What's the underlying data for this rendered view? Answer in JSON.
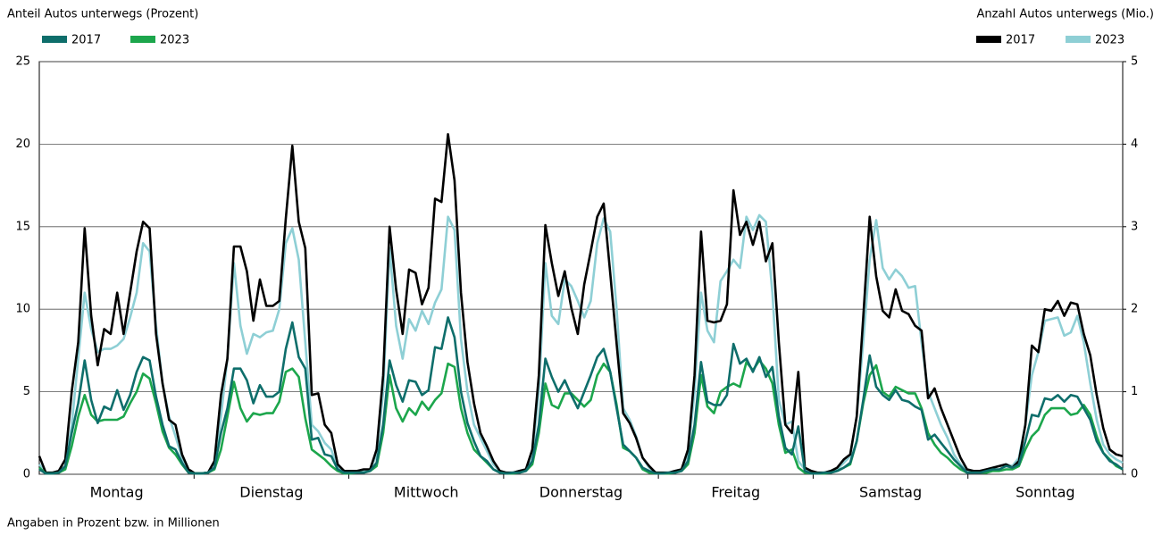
{
  "chart_data": {
    "type": "line",
    "ylabel": "Anteil Autos unterwegs (Prozent)",
    "y2label": "Anzahl Autos unterwegs (Mio.)",
    "note": "Angaben in Prozent bzw. in Millionen",
    "categories": [
      "Montag",
      "Dienstag",
      "Mittwoch",
      "Donnerstag",
      "Freitag",
      "Samstag",
      "Sonntag"
    ],
    "ylim": [
      0,
      25
    ],
    "yticks": [
      0,
      5,
      10,
      15,
      20,
      25
    ],
    "y2lim": [
      0,
      5
    ],
    "y2ticks": [
      0,
      1,
      2,
      3,
      4,
      5
    ],
    "grid": true,
    "series": [
      {
        "name": "2017",
        "color": "#0e6e6b",
        "axis": "y",
        "values": [
          [
            0.3,
            0.05,
            0.05,
            0.1,
            0.5,
            2.5,
            4.3,
            6.9,
            4.5,
            3.1,
            4.1,
            3.9,
            5.1,
            3.9,
            4.8,
            6.2,
            7.1,
            6.9,
            4.7,
            3,
            1.7,
            1.5,
            0.7,
            0.1
          ],
          [
            0.05,
            0.05,
            0.1,
            0.4,
            2.5,
            4,
            6.4,
            6.4,
            5.7,
            4.3,
            5.4,
            4.7,
            4.7,
            5,
            7.6,
            9.2,
            7.1,
            6.4,
            2.1,
            2.2,
            1.2,
            1.1,
            0.3,
            0.1
          ],
          [
            0.1,
            0.1,
            0.1,
            0.2,
            0.7,
            3,
            6.9,
            5.4,
            4.4,
            5.7,
            5.6,
            4.8,
            5.1,
            7.7,
            7.6,
            9.5,
            8.3,
            5,
            3.1,
            2,
            1.1,
            0.8,
            0.3,
            0.1
          ],
          [
            0.05,
            0.1,
            0.1,
            0.2,
            0.8,
            3,
            7,
            5.9,
            5,
            5.7,
            4.8,
            4,
            5,
            6,
            7.1,
            7.6,
            6.2,
            4,
            1.8,
            1.4,
            1,
            0.4,
            0.2,
            0.05
          ],
          [
            0.05,
            0.1,
            0.1,
            0.2,
            0.8,
            3,
            6.8,
            4.4,
            4.2,
            4.2,
            4.8,
            7.9,
            6.7,
            7,
            6.2,
            7.1,
            5.9,
            6.5,
            3.5,
            1.6,
            1.2,
            2.9,
            0.2,
            0.05
          ],
          [
            0.05,
            0.1,
            0.1,
            0.2,
            0.4,
            0.7,
            2,
            4.5,
            7.2,
            5.3,
            4.8,
            4.5,
            5.1,
            4.5,
            4.4,
            4.1,
            3.9,
            2.1,
            2.4,
            1.9,
            1.4,
            0.9,
            0.5,
            0.1
          ],
          [
            0.1,
            0.1,
            0.2,
            0.3,
            0.3,
            0.5,
            0.4,
            0.6,
            2,
            3.6,
            3.5,
            4.6,
            4.5,
            4.8,
            4.4,
            4.8,
            4.7,
            4,
            3.3,
            2,
            1.3,
            0.8,
            0.6,
            0.3
          ]
        ]
      },
      {
        "name": "2023",
        "color": "#1ca64c",
        "axis": "y",
        "values": [
          [
            0.4,
            0.05,
            0.05,
            0.1,
            0.3,
            1.7,
            3.5,
            4.8,
            3.6,
            3.2,
            3.3,
            3.3,
            3.3,
            3.5,
            4.3,
            5,
            6.1,
            5.8,
            4.3,
            2.6,
            1.6,
            1.2,
            0.6,
            0.1
          ],
          [
            0.05,
            0.05,
            0.1,
            0.3,
            1.5,
            3.5,
            5.6,
            4,
            3.2,
            3.7,
            3.6,
            3.7,
            3.7,
            4.4,
            6.2,
            6.4,
            5.9,
            3.4,
            1.5,
            1.2,
            0.9,
            0.5,
            0.2,
            0.05
          ],
          [
            0.05,
            0.1,
            0.1,
            0.2,
            0.5,
            2.5,
            6,
            4,
            3.2,
            4,
            3.6,
            4.4,
            3.9,
            4.5,
            4.9,
            6.7,
            6.5,
            4,
            2.5,
            1.5,
            1.1,
            0.7,
            0.3,
            0.1
          ],
          [
            0.05,
            0.05,
            0.1,
            0.2,
            0.6,
            2.5,
            5.5,
            4.2,
            4,
            4.9,
            4.9,
            4.5,
            4.1,
            4.5,
            6,
            6.7,
            6.2,
            4.2,
            1.6,
            1.4,
            1,
            0.3,
            0.1,
            0.05
          ],
          [
            0.05,
            0.05,
            0.1,
            0.2,
            0.6,
            2.5,
            6,
            4.1,
            3.7,
            5,
            5.3,
            5.5,
            5.3,
            6.8,
            6.3,
            6.9,
            6.4,
            5.5,
            3,
            1.3,
            1.5,
            0.4,
            0.1,
            0.05
          ],
          [
            0.05,
            0.05,
            0.1,
            0.2,
            0.4,
            0.6,
            2,
            4.3,
            6,
            6.6,
            5,
            4.7,
            5.3,
            5.1,
            4.9,
            4.9,
            4,
            2.5,
            1.8,
            1.3,
            1,
            0.6,
            0.3,
            0.1
          ],
          [
            0.1,
            0.1,
            0.1,
            0.2,
            0.2,
            0.3,
            0.3,
            0.5,
            1.5,
            2.3,
            2.7,
            3.6,
            4,
            4,
            4,
            3.6,
            3.7,
            4.2,
            3.6,
            2.3,
            1.3,
            0.9,
            0.5,
            0.3
          ]
        ]
      },
      {
        "name": "2017",
        "color": "#000000",
        "axis": "y2",
        "values": [
          [
            0.22,
            0.02,
            0.02,
            0.04,
            0.18,
            1.0,
            1.6,
            2.98,
            1.92,
            1.32,
            1.76,
            1.7,
            2.2,
            1.7,
            2.2,
            2.7,
            3.06,
            2.98,
            1.7,
            1.1,
            0.66,
            0.6,
            0.24,
            0.06
          ],
          [
            0.01,
            0.01,
            0.02,
            0.16,
            0.96,
            1.4,
            2.76,
            2.76,
            2.46,
            1.86,
            2.36,
            2.04,
            2.04,
            2.1,
            3.1,
            3.98,
            3.06,
            2.74,
            0.96,
            0.98,
            0.6,
            0.5,
            0.12,
            0.04
          ],
          [
            0.04,
            0.04,
            0.06,
            0.06,
            0.3,
            1.2,
            3,
            2.24,
            1.7,
            2.48,
            2.44,
            2.06,
            2.26,
            3.34,
            3.3,
            4.12,
            3.56,
            2.2,
            1.36,
            0.86,
            0.5,
            0.34,
            0.16,
            0.04
          ],
          [
            0.02,
            0.02,
            0.04,
            0.06,
            0.3,
            1.2,
            3.02,
            2.56,
            2.16,
            2.46,
            2.02,
            1.7,
            2.3,
            2.7,
            3.12,
            3.28,
            2.44,
            1.58,
            0.74,
            0.62,
            0.44,
            0.2,
            0.1,
            0.02
          ],
          [
            0.02,
            0.02,
            0.04,
            0.06,
            0.3,
            1.2,
            2.94,
            1.86,
            1.84,
            1.86,
            2.06,
            3.44,
            2.9,
            3.06,
            2.78,
            3.06,
            2.58,
            2.8,
            1.6,
            0.6,
            0.5,
            1.24,
            0.08,
            0.04
          ],
          [
            0.02,
            0.02,
            0.04,
            0.08,
            0.18,
            0.24,
            0.7,
            1.9,
            3.12,
            2.4,
            1.98,
            1.9,
            2.24,
            1.98,
            1.94,
            1.8,
            1.74,
            0.92,
            1.04,
            0.8,
            0.6,
            0.4,
            0.2,
            0.06
          ],
          [
            0.04,
            0.04,
            0.06,
            0.08,
            0.1,
            0.12,
            0.08,
            0.16,
            0.6,
            1.56,
            1.48,
            2,
            1.98,
            2.1,
            1.92,
            2.08,
            2.06,
            1.7,
            1.44,
            0.96,
            0.56,
            0.3,
            0.24,
            0.22
          ]
        ]
      },
      {
        "name": "2023",
        "color": "#8ecfd5",
        "axis": "y2",
        "values": [
          [
            0.12,
            0.02,
            0.02,
            0.02,
            0.1,
            0.6,
            1.4,
            2.2,
            1.76,
            1.48,
            1.52,
            1.52,
            1.56,
            1.64,
            1.9,
            2.2,
            2.8,
            2.7,
            1.8,
            1.1,
            0.7,
            0.46,
            0.2,
            0.04
          ],
          [
            0.01,
            0.01,
            0.02,
            0.1,
            0.7,
            1.4,
            2.56,
            1.8,
            1.46,
            1.7,
            1.66,
            1.72,
            1.74,
            2,
            2.8,
            2.98,
            2.6,
            1.6,
            0.6,
            0.52,
            0.38,
            0.3,
            0.08,
            0.02
          ],
          [
            0.02,
            0.02,
            0.04,
            0.06,
            0.24,
            1,
            2.74,
            1.8,
            1.4,
            1.88,
            1.74,
            1.98,
            1.82,
            2.08,
            2.24,
            3.12,
            2.96,
            1.64,
            1,
            0.6,
            0.44,
            0.28,
            0.12,
            0.04
          ],
          [
            0.02,
            0.02,
            0.04,
            0.06,
            0.24,
            1,
            2.56,
            1.92,
            1.82,
            2.36,
            2.28,
            2.1,
            1.9,
            2.1,
            2.8,
            3.1,
            2.94,
            2,
            0.8,
            0.66,
            0.46,
            0.2,
            0.08,
            0.02
          ],
          [
            0.02,
            0.02,
            0.04,
            0.06,
            0.24,
            1,
            2.2,
            1.74,
            1.6,
            2.34,
            2.46,
            2.6,
            2.5,
            3.12,
            2.96,
            3.14,
            3.06,
            2.2,
            0.9,
            0.6,
            0.64,
            0.16,
            0.06,
            0.02
          ],
          [
            0.02,
            0.02,
            0.04,
            0.06,
            0.14,
            0.22,
            0.7,
            1.6,
            2.6,
            3.08,
            2.5,
            2.36,
            2.48,
            2.4,
            2.26,
            2.28,
            1.6,
            1,
            0.8,
            0.6,
            0.44,
            0.24,
            0.12,
            0.04
          ],
          [
            0.04,
            0.04,
            0.06,
            0.08,
            0.1,
            0.12,
            0.1,
            0.2,
            0.6,
            1.2,
            1.48,
            1.86,
            1.88,
            1.9,
            1.68,
            1.72,
            1.92,
            1.6,
            1.1,
            0.66,
            0.36,
            0.24,
            0.18,
            0.14
          ]
        ]
      }
    ]
  }
}
